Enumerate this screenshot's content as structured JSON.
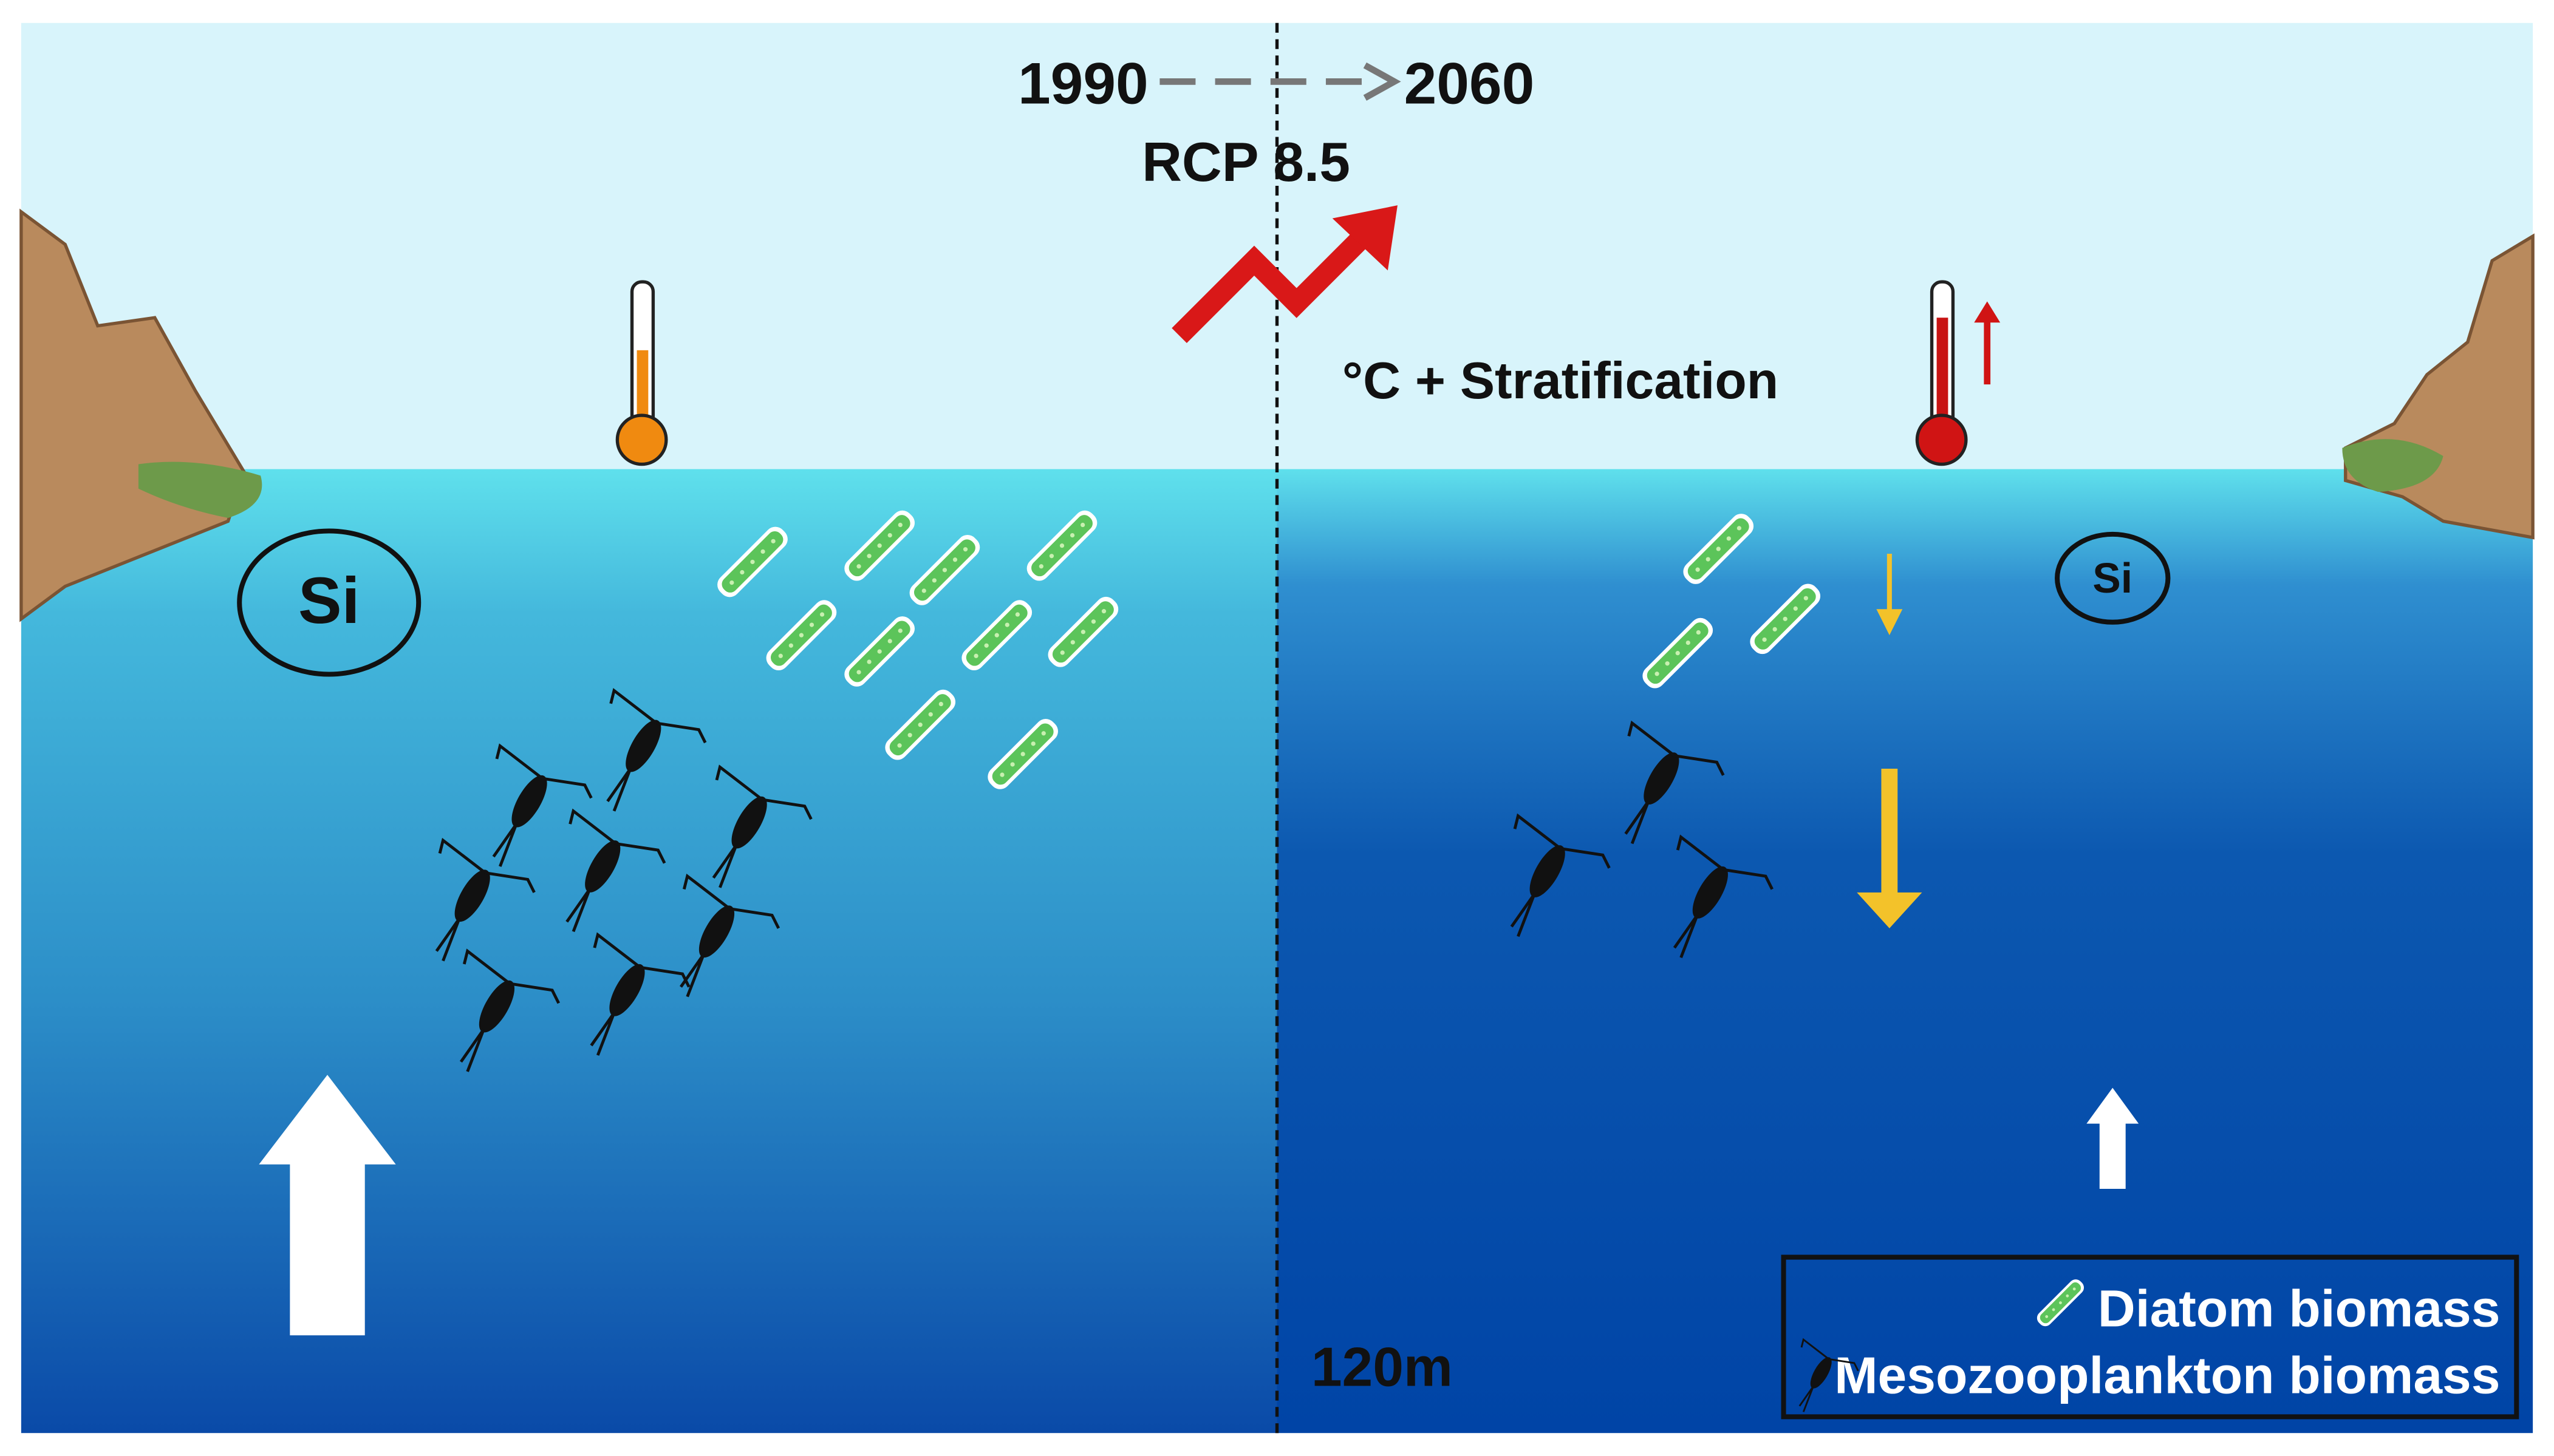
{
  "timeline": {
    "start": "1990",
    "end": "2060",
    "scenario": "RCP 8.5"
  },
  "change_label": "°C + Stratification",
  "panels": [
    {
      "nutrient": "Si"
    },
    {
      "nutrient": "Si"
    }
  ],
  "depth_label": "120m",
  "legend": [
    {
      "label": "Diatom biomass"
    },
    {
      "label": "Mesozooplankton biomass"
    }
  ]
}
